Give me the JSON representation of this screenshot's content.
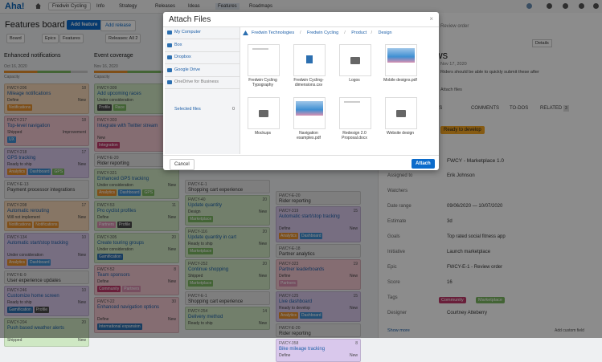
{
  "nav": {
    "logo": "Aha!",
    "workspace": "Fredwin Cycling",
    "tabs": [
      "Info",
      "Strategy",
      "Releases",
      "Ideas",
      "Features",
      "Roadmaps"
    ]
  },
  "board": {
    "title": "Features board",
    "add_feature": "Add feature",
    "add_release": "Add release",
    "filters": [
      "Board",
      "Epics",
      "Features",
      "Releases: All 2"
    ],
    "columns": [
      {
        "title": "Enhanced notifications",
        "date": "Oct 16, 2020",
        "capacity": "Capacity",
        "cards": [
          {
            "id": "FWCY-206",
            "score": "18",
            "title": "Mileage notifications",
            "status": "Define",
            "type": "New",
            "color": "#f6d8b8",
            "tags": [
              {
                "text": "Notifications",
                "color": "#e8912d"
              }
            ]
          },
          {
            "id": "FWCY-217",
            "score": "18",
            "title": "Top-level navigation",
            "status": "Shipped",
            "type": "Improvement",
            "color": "#f2c6d0",
            "tags": [
              {
                "text": "UX",
                "color": "#3f8fd2"
              }
            ]
          },
          {
            "id": "FWCY-218",
            "score": "17",
            "title": "GPS tracking",
            "status": "Ready to ship",
            "type": "New",
            "color": "#d9c8ec",
            "tags": [
              {
                "text": "Analytics",
                "color": "#e8912d"
              },
              {
                "text": "Dashboard",
                "color": "#3f8fd2"
              },
              {
                "text": "GPS",
                "color": "#7bb661"
              }
            ]
          },
          {
            "id": "FWCY-E-13",
            "title": "Payment processor integrations",
            "epic": true,
            "color": "#e6e6e6"
          },
          {
            "id": "FWCY-208",
            "score": "17",
            "title": "Automatic rerouting",
            "status": "Will not implement",
            "type": "New",
            "color": "#f6d8b8",
            "tags": [
              {
                "text": "Notifications",
                "color": "#e8912d"
              },
              {
                "text": "Notifications",
                "color": "#e8912d"
              }
            ]
          },
          {
            "id": "FWCY-134",
            "score": "10",
            "title": "Automatic start/stop tracking",
            "status": "Under consideration",
            "type": "New",
            "color": "#d9c8ec",
            "tags": [
              {
                "text": "Analytics",
                "color": "#e8912d"
              },
              {
                "text": "Dashboard",
                "color": "#3f8fd2"
              }
            ]
          },
          {
            "id": "FWCY-E-9",
            "title": "User experience updates",
            "epic": true,
            "color": "#e6e6e6"
          },
          {
            "id": "FWCY-246",
            "score": "10",
            "title": "Customize home screen",
            "status": "Ready to ship",
            "type": "New",
            "color": "#d9c8ec",
            "tags": [
              {
                "text": "Gamification",
                "color": "#2c6fb0"
              },
              {
                "text": "Profile",
                "color": "#4a4a4a"
              }
            ]
          },
          {
            "id": "FWCY-204",
            "score": "20",
            "title": "Push based weather alerts",
            "status": "Shipped",
            "type": "New",
            "color": "#cfe8c4",
            "tags": []
          }
        ]
      },
      {
        "title": "Event coverage",
        "date": "Nov 16, 2020",
        "capacity": "Capacity",
        "cards": [
          {
            "id": "FWCY-309",
            "title": "Add upcoming races",
            "status": "Under consideration",
            "type": "New",
            "color": "#cfe8c4",
            "tags": [
              {
                "text": "Profile",
                "color": "#4a4a4a"
              },
              {
                "text": "Race",
                "color": "#7bb661"
              }
            ]
          },
          {
            "id": "FWCY-303",
            "title": "Integrate with Twitter stream",
            "status": "New",
            "type": "",
            "color": "#f2c6d0",
            "tags": [
              {
                "text": "Integration",
                "color": "#c0396b"
              }
            ]
          },
          {
            "id": "FWCY-E-20",
            "title": "Rider reporting",
            "epic": true,
            "color": "#e6e6e6"
          },
          {
            "id": "FWCY-321",
            "title": "Enhanced GPS tracking",
            "status": "Under consideration",
            "type": "New",
            "color": "#cfe8c4",
            "tags": [
              {
                "text": "Analytics",
                "color": "#e8912d"
              },
              {
                "text": "Dashboard",
                "color": "#3f8fd2"
              },
              {
                "text": "GPS",
                "color": "#7bb661"
              }
            ]
          },
          {
            "id": "FWCY-53",
            "score": "11",
            "title": "Pro cyclist profiles",
            "status": "Define",
            "type": "New",
            "color": "#cfe8c4",
            "tags": [
              {
                "text": "Partners",
                "color": "#d98fb0"
              },
              {
                "text": "Profile",
                "color": "#4a4a4a"
              }
            ]
          },
          {
            "id": "FWCY-305",
            "score": "20",
            "title": "Create touring groups",
            "status": "Under consideration",
            "type": "New",
            "color": "#cfe8c4",
            "tags": [
              {
                "text": "Gamification",
                "color": "#2c6fb0"
              }
            ]
          },
          {
            "id": "FWCY-52",
            "score": "8",
            "title": "Team sponsors",
            "status": "Define",
            "type": "New",
            "color": "#f2c6d0",
            "tags": [
              {
                "text": "Community",
                "color": "#c0396b"
              },
              {
                "text": "Partners",
                "color": "#d98fb0"
              }
            ]
          },
          {
            "id": "FWCY-22",
            "score": "30",
            "title": "Enhanced navigation options",
            "status": "Define",
            "type": "New",
            "color": "#f2c6d0",
            "tags": [
              {
                "text": "International expansion",
                "color": "#2c6fb0"
              }
            ]
          }
        ]
      },
      {
        "cards": [
          {
            "id": "FWCY-E-1",
            "title": "Shopping cart experience",
            "epic": true,
            "color": "#e6e6e6"
          },
          {
            "id": "FWCY-40",
            "score": "20",
            "title": "Update quantity",
            "status": "Design",
            "type": "New",
            "color": "#cfe8c4",
            "tags": [
              {
                "text": "Marketplace",
                "color": "#7bb661"
              }
            ]
          },
          {
            "id": "FWCY-116",
            "score": "20",
            "title": "Update quantity in cart",
            "status": "Ready to ship",
            "type": "New",
            "color": "#cfe8c4",
            "tags": [
              {
                "text": "Marketplace",
                "color": "#7bb661"
              }
            ]
          },
          {
            "id": "FWCY-252",
            "score": "20",
            "title": "Continue shopping",
            "status": "Shipped",
            "type": "New",
            "color": "#cfe8c4",
            "tags": [
              {
                "text": "Marketplace",
                "color": "#7bb661"
              }
            ]
          },
          {
            "id": "FWCY-E-1",
            "title": "Shopping cart experience",
            "epic": true,
            "color": "#e6e6e6"
          },
          {
            "id": "FWCY-254",
            "score": "14",
            "title": "Delivery method",
            "status": "Ready to ship",
            "type": "New",
            "color": "#cfe8c4",
            "tags": []
          }
        ]
      },
      {
        "cards": [
          {
            "id": "FWCY-E-20",
            "title": "Rider reporting",
            "epic": true,
            "color": "#e6e6e6"
          },
          {
            "id": "FWCY-319",
            "score": "15",
            "title": "Automatic start/stop tracking",
            "status": "Define",
            "type": "New",
            "color": "#d9c8ec",
            "tags": [
              {
                "text": "Analytics",
                "color": "#e8912d"
              },
              {
                "text": "Dashboard",
                "color": "#3f8fd2"
              }
            ]
          },
          {
            "id": "FWCY-E-18",
            "title": "Partner analytics",
            "epic": true,
            "color": "#e6e6e6"
          },
          {
            "id": "FWCY-323",
            "score": "19",
            "title": "Partner leaderboards",
            "status": "Define",
            "type": "New",
            "color": "#f2c6d0",
            "tags": [
              {
                "text": "Partners",
                "color": "#d98fb0"
              }
            ]
          },
          {
            "id": "FWCY-125",
            "score": "15",
            "title": "Live dashboard",
            "status": "Ready to develop",
            "type": "New",
            "color": "#d9c8ec",
            "tags": [
              {
                "text": "Analytics",
                "color": "#e8912d"
              },
              {
                "text": "Dashboard",
                "color": "#3f8fd2"
              }
            ]
          },
          {
            "id": "FWCY-E-20",
            "title": "Rider reporting",
            "epic": true,
            "color": "#e6e6e6"
          },
          {
            "id": "FWCY-358",
            "score": "8",
            "title": "Bike mileage tracking",
            "status": "Define",
            "type": "New",
            "color": "#d9c8ec",
            "tags": []
          }
        ]
      }
    ]
  },
  "detail": {
    "crumb": "Review order",
    "details": "Details",
    "title": "Reviews",
    "date": "Nov 17, 2020",
    "description": "Riders should be able to quickly submit these after",
    "attach": "Attach files",
    "tabs": [
      "REQUIREMENTS",
      "COMMENTS",
      "TO-DOS",
      "RELATED"
    ],
    "related_count": "3",
    "status": "Ready to develop",
    "release": "FWCY - Marketplace 1.0",
    "fields": [
      {
        "label": "Assigned to",
        "value": "Erik Johnson"
      },
      {
        "label": "Watchers",
        "value": ""
      },
      {
        "label": "Date range",
        "value": "09/06/2020  —  10/07/2020"
      },
      {
        "label": "Estimate",
        "value": "3d"
      },
      {
        "label": "Goals",
        "value": "Top rated social fitness app"
      },
      {
        "label": "Initiative",
        "value": "Launch marketplace"
      },
      {
        "label": "Epic",
        "value": "FWCY-E-1 - Review order"
      },
      {
        "label": "Score",
        "value": "16"
      },
      {
        "label": "Tags",
        "value": ""
      },
      {
        "label": "Designer",
        "value": "Courtney Atteberry"
      }
    ],
    "tags": [
      "Community",
      "Marketplace"
    ],
    "show_more": "Show more",
    "add_field": "Add custom field"
  },
  "modal": {
    "title": "Attach Files",
    "sources": [
      "My Computer",
      "Box",
      "Dropbox",
      "Google Drive",
      "OneDrive for Business"
    ],
    "selected": "Selected files",
    "selected_count": "0",
    "breadcrumb": [
      "Fredwin Technologies",
      "Fredwin Cycling",
      "Product",
      "Design"
    ],
    "files": [
      {
        "name": "Fredwin Cycling Typography",
        "kind": "doc"
      },
      {
        "name": "Fredwin Cycling-dimensions.csv",
        "kind": "csv"
      },
      {
        "name": "Logos",
        "kind": "folder"
      },
      {
        "name": "Mobile designs.pdf",
        "kind": "image"
      },
      {
        "name": "Mockups",
        "kind": "folder"
      },
      {
        "name": "Navigation examples.pdf",
        "kind": "image"
      },
      {
        "name": "Redesign 2.0 Proposal.docx",
        "kind": "doc"
      },
      {
        "name": "Website design",
        "kind": "folder"
      }
    ],
    "cancel": "Cancel",
    "attach": "Attach"
  }
}
